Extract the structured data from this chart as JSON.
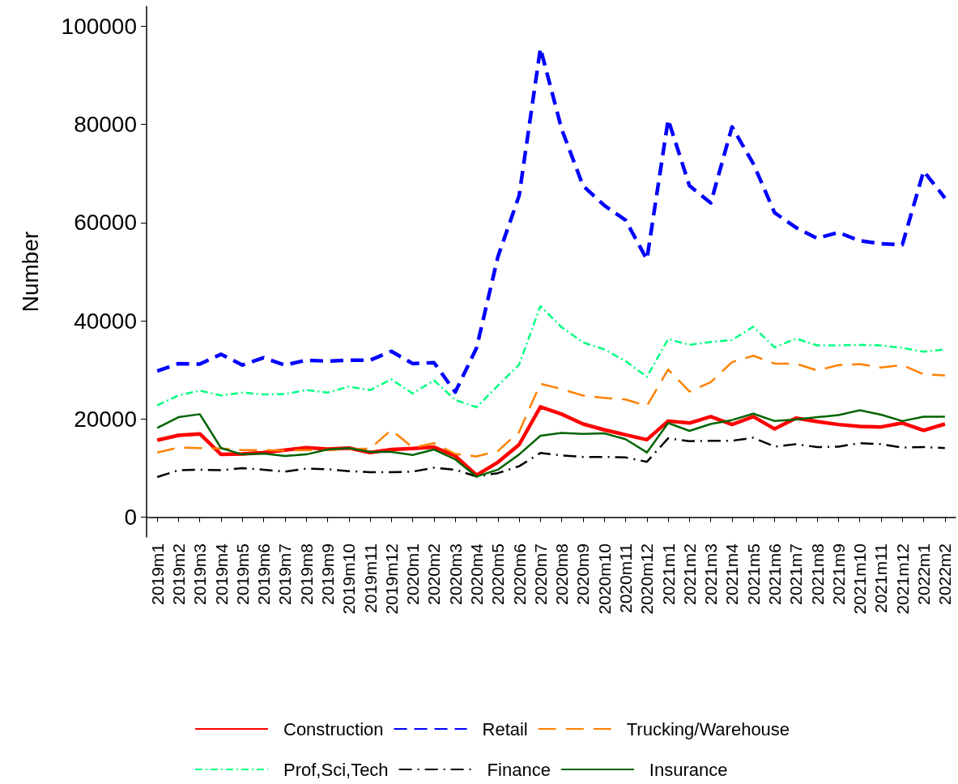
{
  "chart_data": {
    "type": "line",
    "ylabel": "Number",
    "categories": [
      "2019m1",
      "2019m2",
      "2019m3",
      "2019m4",
      "2019m5",
      "2019m6",
      "2019m7",
      "2019m8",
      "2019m9",
      "2019m10",
      "2019m11",
      "2019m12",
      "2020m1",
      "2020m2",
      "2020m3",
      "2020m4",
      "2020m5",
      "2020m6",
      "2020m7",
      "2020m8",
      "2020m9",
      "2020m10",
      "2020m11",
      "2020m12",
      "2021m1",
      "2021m2",
      "2021m3",
      "2021m4",
      "2021m5",
      "2021m6",
      "2021m7",
      "2021m8",
      "2021m9",
      "2021m10",
      "2021m11",
      "2021m12",
      "2022m1",
      "2022m2"
    ],
    "series": [
      {
        "name": "Construction",
        "color": "#ff0000",
        "line_style": "solid",
        "values": [
          15700,
          16700,
          17000,
          12800,
          12900,
          13200,
          13700,
          14200,
          13900,
          14100,
          13200,
          13800,
          14000,
          14300,
          12500,
          8600,
          11200,
          14800,
          22500,
          21000,
          19000,
          17800,
          16800,
          15800,
          19600,
          19200,
          20500,
          18900,
          20500,
          18000,
          20200,
          19500,
          18900,
          18500,
          18400,
          19200,
          17700,
          19000
        ]
      },
      {
        "name": "Retail",
        "color": "#0000ff",
        "line_style": "dashed",
        "values": [
          29800,
          31300,
          31200,
          33200,
          31000,
          32500,
          31000,
          32000,
          31800,
          32000,
          32000,
          33800,
          31300,
          31500,
          25500,
          34500,
          53000,
          65500,
          95500,
          79000,
          67500,
          63500,
          60500,
          52500,
          81000,
          67500,
          64000,
          79500,
          72000,
          62000,
          59000,
          56800,
          58000,
          56300,
          55700,
          55500,
          70500,
          65000
        ]
      },
      {
        "name": "Trucking/Warehouse",
        "color": "#ff8000",
        "line_style": "dashed",
        "values": [
          13200,
          14200,
          14100,
          14000,
          13700,
          13700,
          13600,
          13700,
          13700,
          13900,
          14000,
          17800,
          14200,
          15100,
          12900,
          12400,
          13500,
          17400,
          27200,
          26100,
          24800,
          24300,
          24000,
          22700,
          30100,
          25600,
          27500,
          31600,
          32900,
          31300,
          31300,
          29900,
          31000,
          31200,
          30500,
          31000,
          29100,
          28900
        ]
      },
      {
        "name": "Prof,Sci,Tech",
        "color": "#00ff80",
        "line_style": "dashdot",
        "values": [
          22800,
          24800,
          25800,
          24800,
          25400,
          25000,
          25100,
          25900,
          25400,
          26600,
          25900,
          28100,
          25200,
          27900,
          23900,
          22400,
          26800,
          31100,
          43000,
          38700,
          35600,
          34200,
          31800,
          28600,
          36300,
          35100,
          35700,
          36100,
          38800,
          34600,
          36400,
          35000,
          35000,
          35100,
          35000,
          34500,
          33700,
          34200
        ]
      },
      {
        "name": "Finance",
        "color": "#000000",
        "line_style": "dashdot",
        "values": [
          8200,
          9600,
          9700,
          9600,
          10000,
          9700,
          9300,
          9900,
          9800,
          9400,
          9200,
          9200,
          9300,
          10100,
          9700,
          8300,
          9000,
          10400,
          13100,
          12600,
          12300,
          12300,
          12200,
          11300,
          16100,
          15500,
          15600,
          15600,
          16200,
          14400,
          14900,
          14300,
          14400,
          15100,
          14900,
          14200,
          14300,
          14100
        ]
      },
      {
        "name": "Insurance",
        "color": "#006400",
        "line_style": "solid",
        "values": [
          18200,
          20400,
          21000,
          14100,
          12800,
          13000,
          12500,
          12800,
          13800,
          14100,
          13300,
          13300,
          12700,
          13800,
          11800,
          8300,
          9700,
          12800,
          16600,
          17200,
          17000,
          17100,
          15900,
          13200,
          19200,
          17600,
          19000,
          19800,
          21100,
          19600,
          19900,
          20400,
          20800,
          21800,
          20900,
          19600,
          20500,
          20500
        ]
      }
    ],
    "ylim": [
      -4000,
      104000
    ],
    "yticks": [
      0,
      20000,
      40000,
      60000,
      80000,
      100000
    ],
    "grid": false,
    "legend": "bottom",
    "marker": "none"
  }
}
